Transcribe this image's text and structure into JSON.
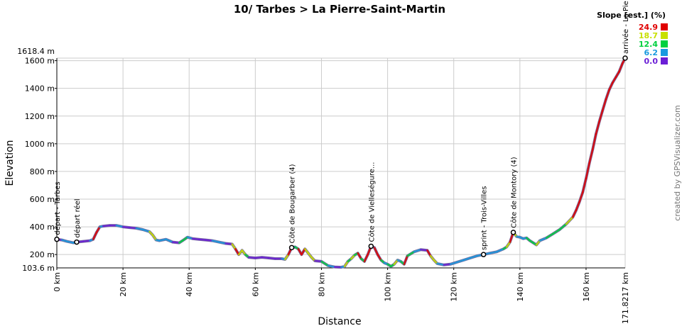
{
  "chart_data": {
    "type": "line",
    "title": "10/ Tarbes > La Pierre-Saint-Martin",
    "xlabel": "Distance",
    "ylabel": "Elevation",
    "xlim": [
      0,
      171.8217
    ],
    "ylim": [
      103.6,
      1618.4
    ],
    "y_min_label": "103.6 m",
    "y_max_label": "1618.4 m",
    "x_end_label": "171.8217 km",
    "x_ticks": [
      0,
      20,
      40,
      60,
      80,
      100,
      120,
      140,
      160
    ],
    "x_tick_labels": [
      "0 km",
      "20 km",
      "40 km",
      "60 km",
      "80 km",
      "100 km",
      "120 km",
      "140 km",
      "160 km"
    ],
    "y_ticks": [
      200,
      400,
      600,
      800,
      1000,
      1200,
      1400,
      1600
    ],
    "y_tick_labels": [
      "200 m",
      "400 m",
      "600 m",
      "800 m",
      "1000 m",
      "1200 m",
      "1400 m",
      "1600 m"
    ],
    "grid": true,
    "points": [
      [
        0,
        310
      ],
      [
        1.5,
        305
      ],
      [
        3,
        295
      ],
      [
        5,
        285
      ],
      [
        6,
        290
      ],
      [
        8,
        295
      ],
      [
        10,
        300
      ],
      [
        11,
        310
      ],
      [
        12,
        360
      ],
      [
        13,
        400
      ],
      [
        14,
        405
      ],
      [
        16,
        410
      ],
      [
        18,
        410
      ],
      [
        20,
        400
      ],
      [
        22,
        395
      ],
      [
        24,
        390
      ],
      [
        26,
        380
      ],
      [
        28,
        365
      ],
      [
        29,
        340
      ],
      [
        30,
        305
      ],
      [
        31,
        300
      ],
      [
        33,
        310
      ],
      [
        34,
        300
      ],
      [
        35,
        290
      ],
      [
        37,
        285
      ],
      [
        38,
        300
      ],
      [
        39.5,
        325
      ],
      [
        41,
        315
      ],
      [
        43,
        310
      ],
      [
        45,
        305
      ],
      [
        47,
        300
      ],
      [
        49,
        290
      ],
      [
        51,
        280
      ],
      [
        53,
        275
      ],
      [
        54,
        240
      ],
      [
        55,
        200
      ],
      [
        56,
        230
      ],
      [
        57,
        200
      ],
      [
        58,
        180
      ],
      [
        60,
        175
      ],
      [
        62,
        180
      ],
      [
        64,
        175
      ],
      [
        66,
        170
      ],
      [
        68,
        170
      ],
      [
        69,
        165
      ],
      [
        70,
        200
      ],
      [
        71,
        250
      ],
      [
        72,
        255
      ],
      [
        73,
        240
      ],
      [
        74,
        200
      ],
      [
        75,
        240
      ],
      [
        76,
        210
      ],
      [
        77,
        180
      ],
      [
        78,
        155
      ],
      [
        80,
        150
      ],
      [
        82,
        120
      ],
      [
        84,
        110
      ],
      [
        86,
        108
      ],
      [
        87,
        115
      ],
      [
        88,
        150
      ],
      [
        89,
        170
      ],
      [
        90,
        195
      ],
      [
        91,
        210
      ],
      [
        92,
        170
      ],
      [
        93,
        150
      ],
      [
        94,
        200
      ],
      [
        95,
        260
      ],
      [
        96,
        250
      ],
      [
        97,
        200
      ],
      [
        98,
        160
      ],
      [
        99,
        140
      ],
      [
        100,
        130
      ],
      [
        101,
        115
      ],
      [
        102,
        130
      ],
      [
        103,
        160
      ],
      [
        104,
        150
      ],
      [
        105,
        130
      ],
      [
        106,
        190
      ],
      [
        108,
        220
      ],
      [
        110,
        235
      ],
      [
        112,
        230
      ],
      [
        113,
        190
      ],
      [
        114,
        160
      ],
      [
        115,
        135
      ],
      [
        117,
        125
      ],
      [
        119,
        130
      ],
      [
        121,
        145
      ],
      [
        123,
        160
      ],
      [
        125,
        175
      ],
      [
        127,
        190
      ],
      [
        129,
        200
      ],
      [
        131,
        210
      ],
      [
        133,
        220
      ],
      [
        135,
        240
      ],
      [
        136,
        255
      ],
      [
        137,
        290
      ],
      [
        138,
        360
      ],
      [
        139,
        330
      ],
      [
        140,
        325
      ],
      [
        141,
        315
      ],
      [
        142,
        320
      ],
      [
        143,
        300
      ],
      [
        144,
        285
      ],
      [
        145,
        270
      ],
      [
        146,
        300
      ],
      [
        148,
        320
      ],
      [
        150,
        350
      ],
      [
        152,
        380
      ],
      [
        154,
        420
      ],
      [
        156,
        470
      ],
      [
        157,
        520
      ],
      [
        158,
        580
      ],
      [
        159,
        650
      ],
      [
        160,
        750
      ],
      [
        161,
        860
      ],
      [
        162,
        960
      ],
      [
        163,
        1070
      ],
      [
        164,
        1160
      ],
      [
        165,
        1240
      ],
      [
        166,
        1320
      ],
      [
        167,
        1390
      ],
      [
        168,
        1440
      ],
      [
        169,
        1480
      ],
      [
        170,
        1520
      ],
      [
        171,
        1580
      ],
      [
        171.8217,
        1618.4
      ]
    ],
    "waypoints": [
      {
        "km": 0,
        "elev": 310,
        "label": "départ - Tarbes"
      },
      {
        "km": 6,
        "elev": 290,
        "label": "départ réel"
      },
      {
        "km": 71,
        "elev": 250,
        "label": "Côte de Bougarber (4)"
      },
      {
        "km": 95,
        "elev": 260,
        "label": "Côte de Vielleségure..."
      },
      {
        "km": 129,
        "elev": 200,
        "label": "sprint - Trois-Villes"
      },
      {
        "km": 138,
        "elev": 360,
        "label": "Côte de Montory (4)"
      },
      {
        "km": 171.8217,
        "elev": 1618.4,
        "label": "arrivée - La Pie"
      }
    ],
    "legend": {
      "title": "Slope [est.] (%)",
      "placement": "top-right",
      "entries": [
        {
          "value": "24.9",
          "color": "#e00000"
        },
        {
          "value": "18.7",
          "color": "#c8e000"
        },
        {
          "value": "12.4",
          "color": "#00d040"
        },
        {
          "value": "6.2",
          "color": "#1a9adf"
        },
        {
          "value": "0.0",
          "color": "#6b1fd6"
        }
      ]
    },
    "colors": {
      "flat": "#7a6fa0",
      "track": "#6b1fd6",
      "grid": "#cccccc",
      "axis": "#000000"
    }
  },
  "credit": "created by GPSVisualizer.com"
}
